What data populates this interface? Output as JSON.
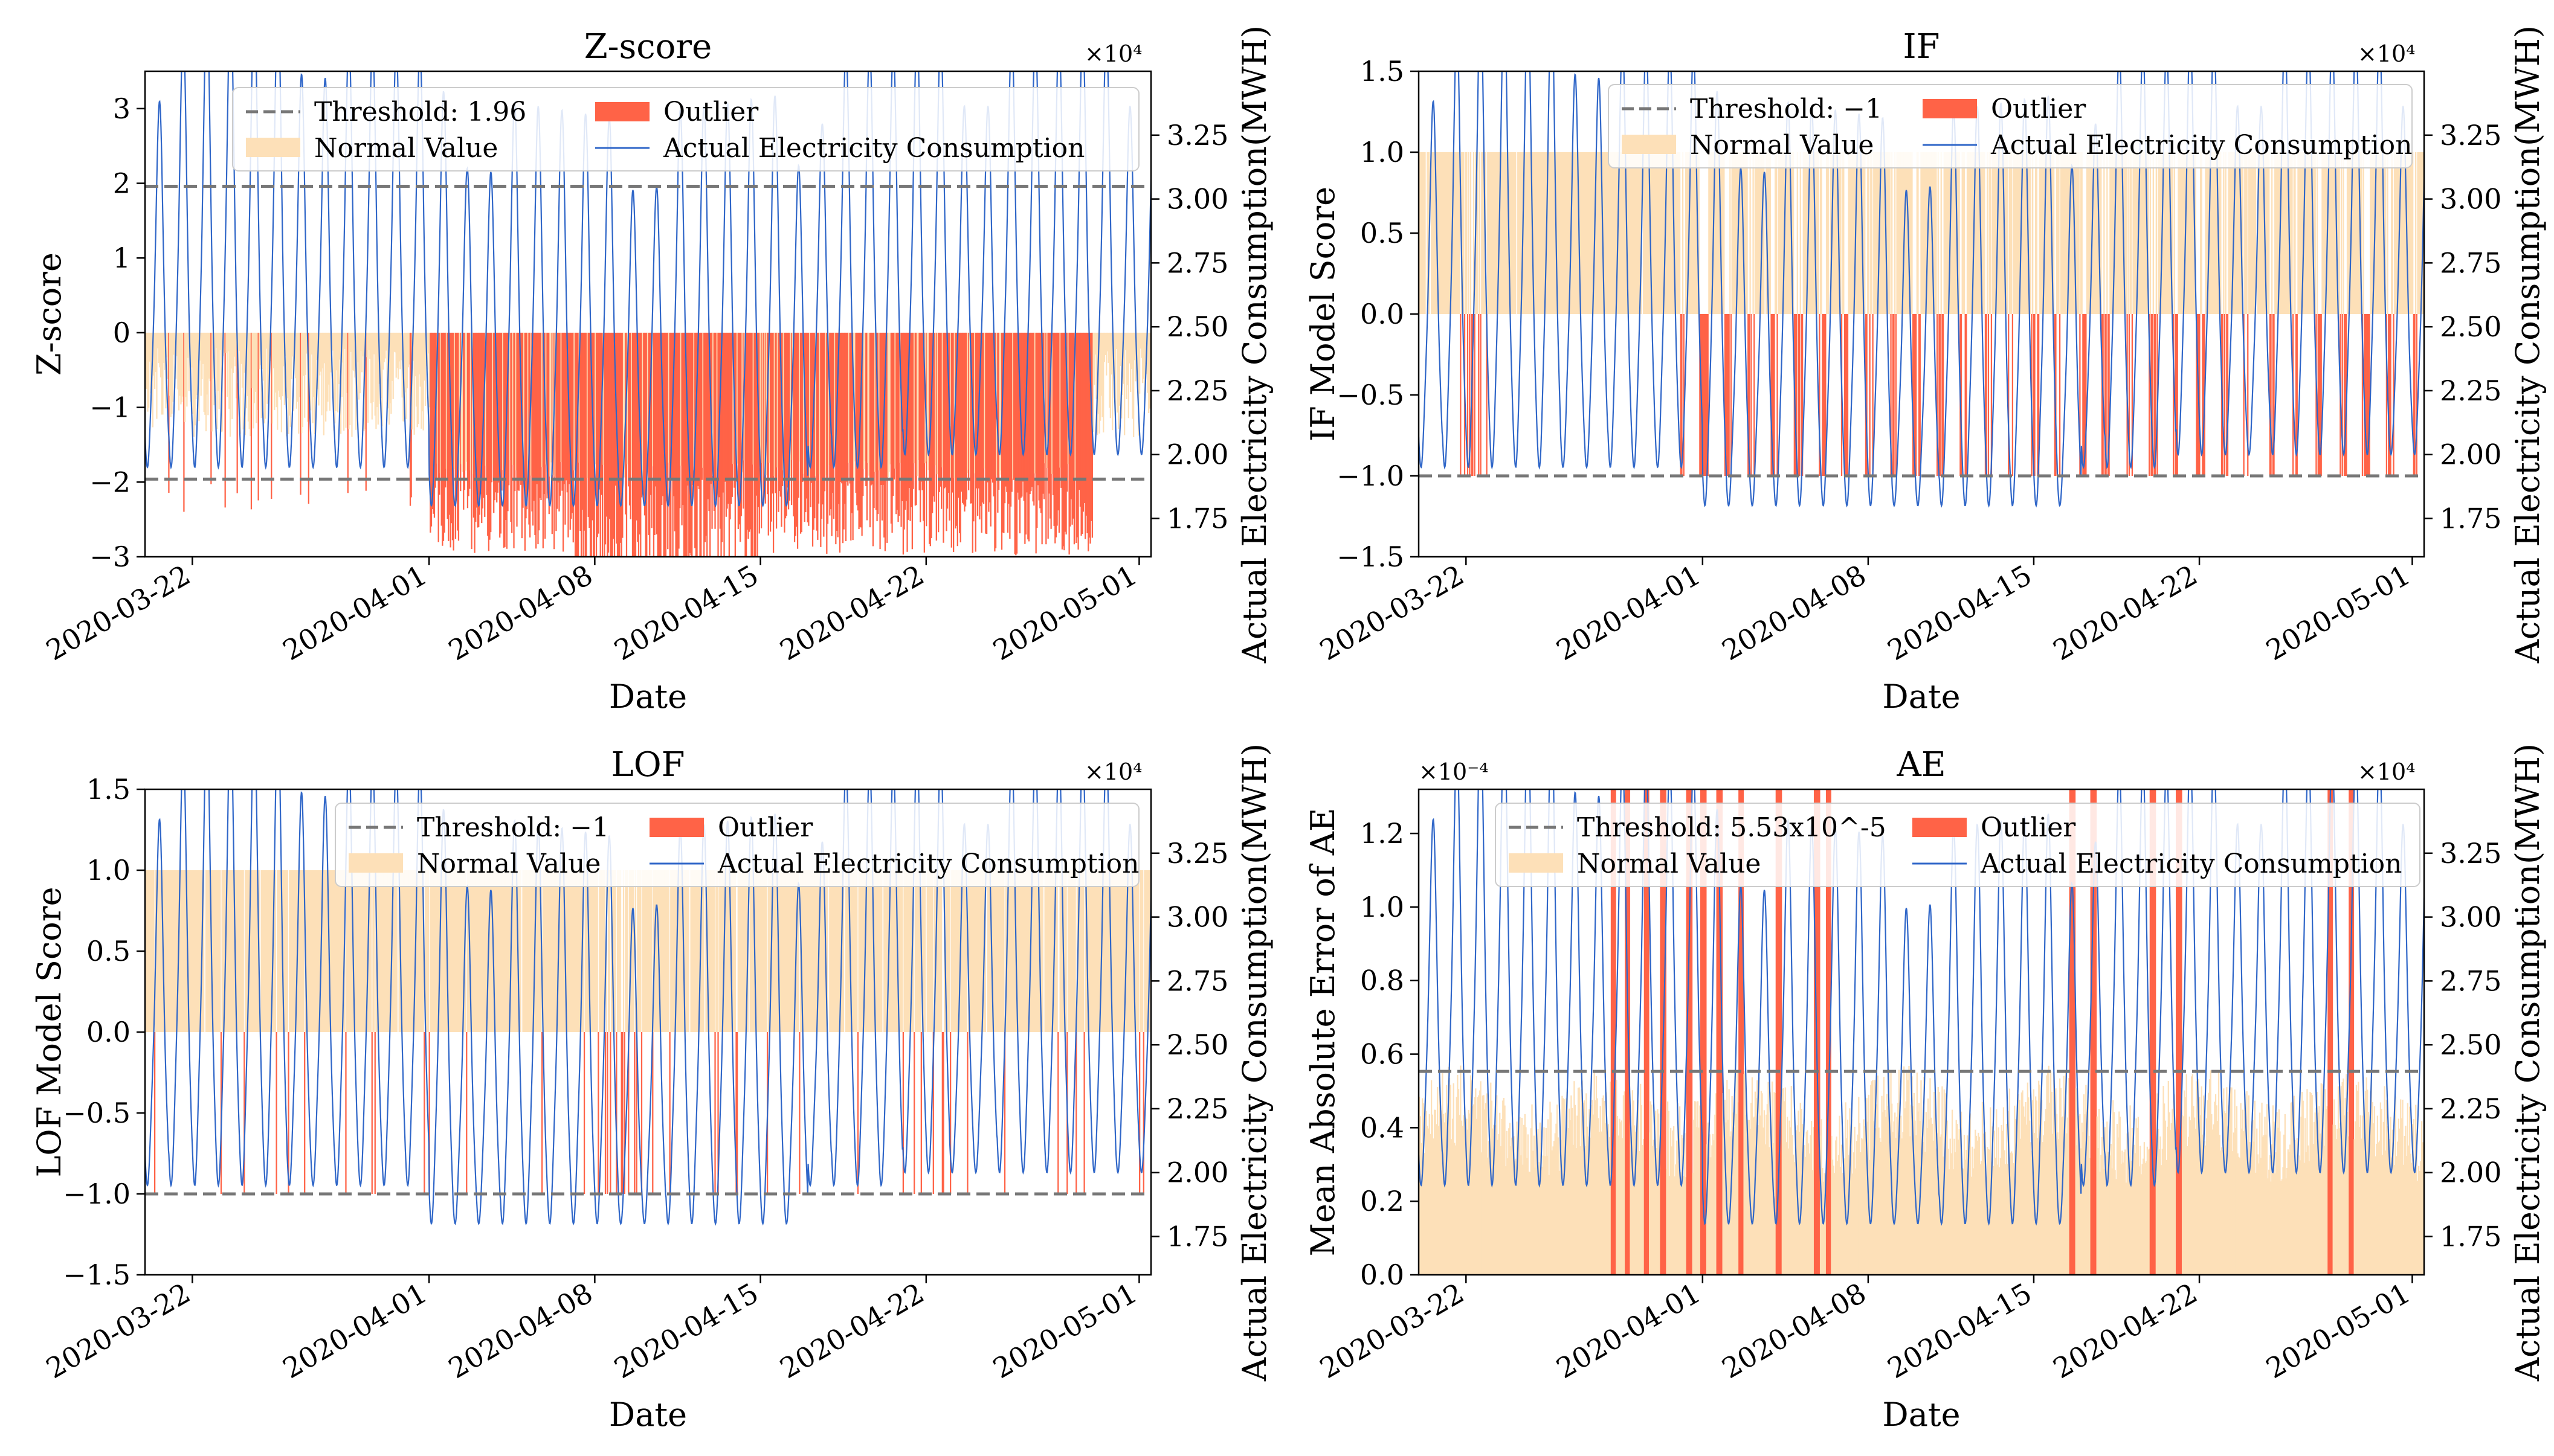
{
  "figure": {
    "domain": "Chart"
  },
  "colors": {
    "normal": "#fde0b8",
    "outlier": "#ff6347",
    "line": "#2f66c8",
    "threshold": "#777777",
    "axis": "#000000"
  },
  "chart_data": [
    {
      "type": "bar",
      "id": "zscore",
      "title": "Z-score",
      "xlabel": "Date",
      "ylabel": "Z-score",
      "ylabel2": "Actual Electricity Consumption(MWH)",
      "y2_multiplier": "×10⁴",
      "ylim": [
        -3,
        3.5
      ],
      "y2lim": [
        1.6,
        3.5
      ],
      "yticks": [
        -3,
        -2,
        -1,
        0,
        1,
        2,
        3
      ],
      "ytick_labels": [
        "−3",
        "−2",
        "−1",
        "0",
        "1",
        "2",
        "3"
      ],
      "y2ticks": [
        1.75,
        2.0,
        2.25,
        2.5,
        2.75,
        3.0,
        3.25
      ],
      "y2tick_labels": [
        "1.75",
        "2.00",
        "2.25",
        "2.50",
        "2.75",
        "3.00",
        "3.25"
      ],
      "xlim_days": [
        0,
        42.5
      ],
      "xticks_days": [
        2,
        12,
        19,
        26,
        33,
        42
      ],
      "xtick_labels": [
        "2020-03-22",
        "2020-04-01",
        "2020-04-08",
        "2020-04-15",
        "2020-04-22",
        "2020-05-01"
      ],
      "threshold": [
        1.96,
        -1.96
      ],
      "legend": {
        "threshold_label": "Threshold: 1.96",
        "normal_label": "Normal Value",
        "outlier_label": "Outlier",
        "line_label": "Actual Electricity Consumption"
      },
      "legend_position": "top-center",
      "bar_mode": "zscore"
    },
    {
      "type": "bar",
      "id": "if",
      "title": "IF",
      "xlabel": "Date",
      "ylabel": "IF Model Score",
      "ylabel2": "Actual Electricity Consumption(MWH)",
      "y2_multiplier": "×10⁴",
      "ylim": [
        -1.5,
        1.5
      ],
      "y2lim": [
        1.6,
        3.5
      ],
      "yticks": [
        -1.5,
        -1.0,
        -0.5,
        0.0,
        0.5,
        1.0,
        1.5
      ],
      "ytick_labels": [
        "−1.5",
        "−1.0",
        "−0.5",
        "0.0",
        "0.5",
        "1.0",
        "1.5"
      ],
      "y2ticks": [
        1.75,
        2.0,
        2.25,
        2.5,
        2.75,
        3.0,
        3.25
      ],
      "y2tick_labels": [
        "1.75",
        "2.00",
        "2.25",
        "2.50",
        "2.75",
        "3.00",
        "3.25"
      ],
      "xlim_days": [
        0,
        42.5
      ],
      "xticks_days": [
        2,
        12,
        19,
        26,
        33,
        42
      ],
      "xtick_labels": [
        "2020-03-22",
        "2020-04-01",
        "2020-04-08",
        "2020-04-15",
        "2020-04-22",
        "2020-05-01"
      ],
      "threshold": [
        -1
      ],
      "legend": {
        "threshold_label": "Threshold: −1",
        "normal_label": "Normal Value",
        "outlier_label": "Outlier",
        "line_label": "Actual Electricity Consumption"
      },
      "legend_position": "top-right",
      "bar_mode": "if"
    },
    {
      "type": "bar",
      "id": "lof",
      "title": "LOF",
      "xlabel": "Date",
      "ylabel": "LOF Model Score",
      "ylabel2": "Actual Electricity Consumption(MWH)",
      "y2_multiplier": "×10⁴",
      "ylim": [
        -1.5,
        1.5
      ],
      "y2lim": [
        1.6,
        3.5
      ],
      "yticks": [
        -1.5,
        -1.0,
        -0.5,
        0.0,
        0.5,
        1.0,
        1.5
      ],
      "ytick_labels": [
        "−1.5",
        "−1.0",
        "−0.5",
        "0.0",
        "0.5",
        "1.0",
        "1.5"
      ],
      "y2ticks": [
        1.75,
        2.0,
        2.25,
        2.5,
        2.75,
        3.0,
        3.25
      ],
      "y2tick_labels": [
        "1.75",
        "2.00",
        "2.25",
        "2.50",
        "2.75",
        "3.00",
        "3.25"
      ],
      "xlim_days": [
        0,
        42.5
      ],
      "xticks_days": [
        2,
        12,
        19,
        26,
        33,
        42
      ],
      "xtick_labels": [
        "2020-03-22",
        "2020-04-01",
        "2020-04-08",
        "2020-04-15",
        "2020-04-22",
        "2020-05-01"
      ],
      "threshold": [
        -1
      ],
      "legend": {
        "threshold_label": "Threshold: −1",
        "normal_label": "Normal Value",
        "outlier_label": "Outlier",
        "line_label": "Actual Electricity Consumption"
      },
      "legend_position": "top-right",
      "bar_mode": "lof"
    },
    {
      "type": "bar",
      "id": "ae",
      "title": "AE",
      "xlabel": "Date",
      "ylabel": "Mean Absolute Error of AE",
      "ylabel2": "Actual Electricity Consumption(MWH)",
      "y_multiplier": "×10⁻⁴",
      "y2_multiplier": "×10⁴",
      "ylim": [
        0,
        1.32
      ],
      "y2lim": [
        1.6,
        3.5
      ],
      "yticks": [
        0,
        0.2,
        0.4,
        0.6,
        0.8,
        1.0,
        1.2
      ],
      "ytick_labels": [
        "0.0",
        "0.2",
        "0.4",
        "0.6",
        "0.8",
        "1.0",
        "1.2"
      ],
      "y2ticks": [
        1.75,
        2.0,
        2.25,
        2.5,
        2.75,
        3.0,
        3.25
      ],
      "y2tick_labels": [
        "1.75",
        "2.00",
        "2.25",
        "2.50",
        "2.75",
        "3.00",
        "3.25"
      ],
      "xlim_days": [
        0,
        42.5
      ],
      "xticks_days": [
        2,
        12,
        19,
        26,
        33,
        42
      ],
      "xtick_labels": [
        "2020-03-22",
        "2020-04-01",
        "2020-04-08",
        "2020-04-15",
        "2020-04-22",
        "2020-05-01"
      ],
      "threshold": [
        0.553
      ],
      "legend": {
        "threshold_label": "Threshold: 5.53x10^-5",
        "normal_label": "Normal Value",
        "outlier_label": "Outlier",
        "line_label": "Actual Electricity Consumption"
      },
      "legend_position": "top-right",
      "bar_mode": "ae"
    }
  ]
}
